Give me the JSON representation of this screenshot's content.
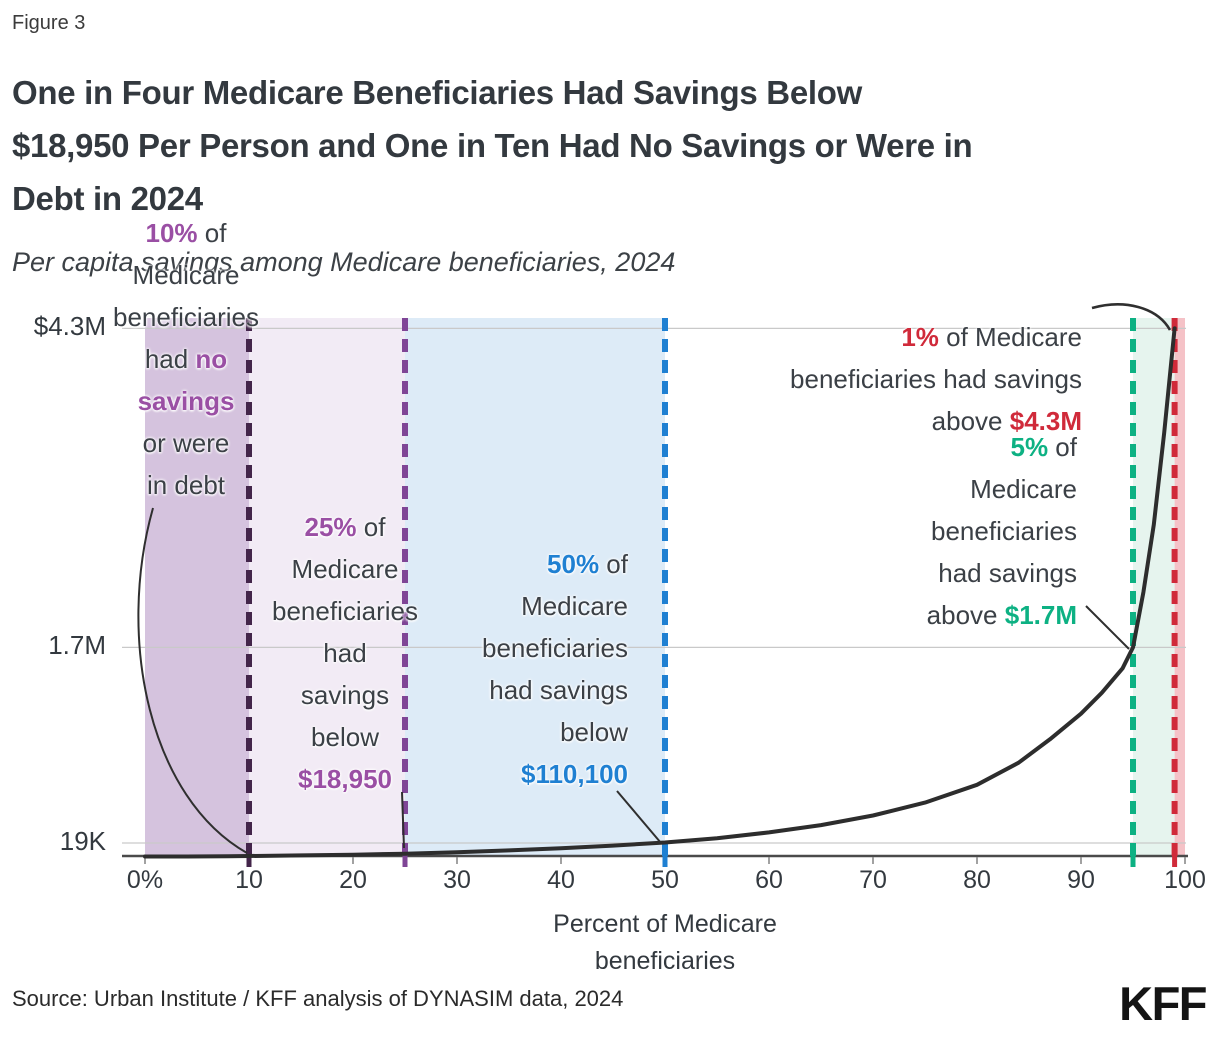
{
  "header": {
    "figure_label": "Figure 3",
    "title_lines": [
      "One in Four Medicare Beneficiaries Had Savings Below",
      "$18,950 Per Person and One in Ten Had No Savings or Were in",
      "Debt in 2024"
    ],
    "subtitle": "Per capita savings among Medicare beneficiaries, 2024"
  },
  "footer": {
    "source": "Source: Urban Institute / KFF analysis of DYNASIM data, 2024",
    "logo_text": "KFF"
  },
  "colors": {
    "purple": "#9a4fa4",
    "dark_purple": "#43254a",
    "mid_purple": "#7f4596",
    "blue": "#1f80d2",
    "green": "#0db183",
    "red": "#d02a3a",
    "region_0_10": "#d5c3de",
    "region_10_25": "#f2ebf5",
    "region_25_50": "#ddebf7",
    "region_95_99": "#e6f4ee",
    "region_99_100": "#f5c2c7",
    "curve": "#2d2d2d",
    "grid": "#c9c9c9"
  },
  "chart_data": {
    "type": "line",
    "title": "Per capita savings among Medicare beneficiaries, 2024",
    "x_axis": {
      "label_lines": [
        "Percent of Medicare",
        "beneficiaries"
      ],
      "range": [
        0,
        100
      ],
      "ticks": [
        {
          "p": 0,
          "label": "0%"
        },
        {
          "p": 10,
          "label": "10"
        },
        {
          "p": 20,
          "label": "20"
        },
        {
          "p": 30,
          "label": "30"
        },
        {
          "p": 40,
          "label": "40"
        },
        {
          "p": 50,
          "label": "50"
        },
        {
          "p": 60,
          "label": "60"
        },
        {
          "p": 70,
          "label": "70"
        },
        {
          "p": 80,
          "label": "80"
        },
        {
          "p": 90,
          "label": "90"
        },
        {
          "p": 100,
          "label": "100"
        }
      ]
    },
    "y_axis": {
      "unit": "dollars per person",
      "range": [
        0,
        4300000
      ],
      "grid": true,
      "ticks": [
        {
          "value": 19000,
          "label": "19K"
        },
        {
          "value": 1700000,
          "label": "1.7M"
        },
        {
          "value": 4300000,
          "label": "$4.3M"
        }
      ]
    },
    "regions": [
      {
        "from": 0,
        "to": 10,
        "color": "#d5c3de"
      },
      {
        "from": 10,
        "to": 25,
        "color": "#f2ebf5"
      },
      {
        "from": 25,
        "to": 50,
        "color": "#ddebf7"
      },
      {
        "from": 95,
        "to": 99,
        "color": "#e6f4ee"
      },
      {
        "from": 99,
        "to": 100,
        "color": "#f5c2c7"
      }
    ],
    "thresholds": [
      {
        "p": 10,
        "value": 0,
        "note": "10% had no savings or were in debt",
        "color": "#43254a"
      },
      {
        "p": 25,
        "value": 18950,
        "note": "25% had savings below $18,950",
        "color": "#7f4596"
      },
      {
        "p": 50,
        "value": 110100,
        "note": "50% had savings below $110,100",
        "color": "#1f80d2"
      },
      {
        "p": 95,
        "value": 1700000,
        "note": "5% had savings above $1.7M",
        "color": "#0db183"
      },
      {
        "p": 99,
        "value": 4300000,
        "note": "1% had savings above $4.3M",
        "color": "#d02a3a"
      }
    ],
    "series": [
      {
        "name": "Per capita savings by percentile of Medicare beneficiaries",
        "points": [
          [
            0,
            -20000
          ],
          [
            4,
            -8000
          ],
          [
            8,
            -2000
          ],
          [
            10,
            0
          ],
          [
            15,
            5000
          ],
          [
            20,
            10500
          ],
          [
            25,
            18950
          ],
          [
            30,
            31000
          ],
          [
            35,
            46000
          ],
          [
            40,
            63000
          ],
          [
            45,
            85000
          ],
          [
            50,
            110100
          ],
          [
            55,
            145000
          ],
          [
            60,
            192000
          ],
          [
            65,
            252000
          ],
          [
            70,
            330000
          ],
          [
            75,
            435000
          ],
          [
            80,
            580000
          ],
          [
            84,
            760000
          ],
          [
            87,
            950000
          ],
          [
            90,
            1160000
          ],
          [
            92,
            1330000
          ],
          [
            94,
            1530000
          ],
          [
            95,
            1700000
          ],
          [
            96,
            2150000
          ],
          [
            97,
            2700000
          ],
          [
            98,
            3450000
          ],
          [
            99,
            4300000
          ]
        ]
      }
    ],
    "legend": {
      "show": false
    }
  },
  "annotations": {
    "p10": {
      "l1a": "10%",
      "l1b": " of",
      "l2": "Medicare",
      "l3": "beneficiaries",
      "l4a": "had ",
      "l4b": "no",
      "l5": "savings",
      "l6": "or were",
      "l7": "in debt"
    },
    "p25": {
      "l1a": "25%",
      "l1b": " of",
      "l2": "Medicare",
      "l3": "beneficiaries",
      "l4": "had",
      "l5": "savings",
      "l6": "below",
      "l7": "$18,950"
    },
    "p50": {
      "l1a": "50%",
      "l1b": " of",
      "l2": "Medicare",
      "l3": "beneficiaries",
      "l4": "had savings",
      "l5": "below",
      "l6": "$110,100"
    },
    "p95": {
      "l1a": "5%",
      "l1b": " of",
      "l2": "Medicare",
      "l3": "beneficiaries",
      "l4": "had savings",
      "l5a": "above ",
      "l5b": "$1.7M"
    },
    "p99": {
      "l1a": "1%",
      "l1b": " of Medicare",
      "l2": "beneficiaries had savings",
      "l3a": "above ",
      "l3b": "$4.3M"
    }
  }
}
